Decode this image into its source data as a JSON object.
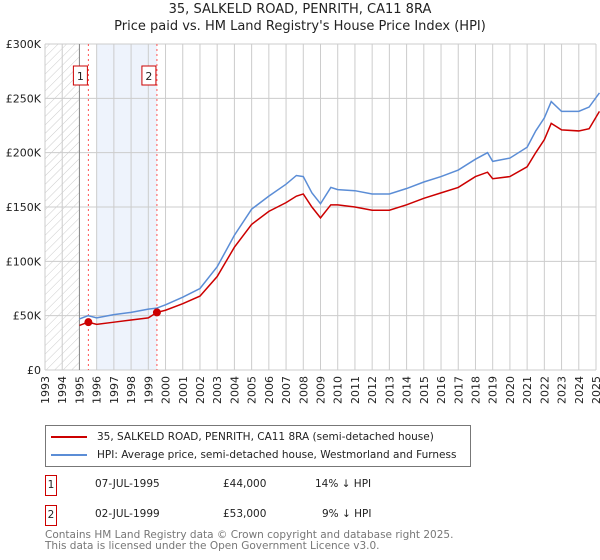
{
  "title": "35, SALKELD ROAD, PENRITH, CA11 8RA",
  "subtitle": "Price paid vs. HM Land Registry's House Price Index (HPI)",
  "chart_data": {
    "type": "line",
    "ylim": [
      0,
      300000
    ],
    "xlim": [
      1993,
      2025
    ],
    "yticks": [
      {
        "v": 0,
        "l": "£0"
      },
      {
        "v": 50000,
        "l": "£50K"
      },
      {
        "v": 100000,
        "l": "£100K"
      },
      {
        "v": 150000,
        "l": "£150K"
      },
      {
        "v": 200000,
        "l": "£200K"
      },
      {
        "v": 250000,
        "l": "£250K"
      },
      {
        "v": 300000,
        "l": "£300K"
      }
    ],
    "xticks": [
      "1993",
      "1994",
      "1995",
      "1996",
      "1997",
      "1998",
      "1999",
      "2000",
      "2001",
      "2002",
      "2003",
      "2004",
      "2005",
      "2006",
      "2007",
      "2008",
      "2009",
      "2010",
      "2011",
      "2012",
      "2013",
      "2014",
      "2015",
      "2016",
      "2017",
      "2018",
      "2019",
      "2020",
      "2021",
      "2022",
      "2023",
      "2024",
      "2025"
    ],
    "series": [
      {
        "name": "35, SALKELD ROAD, PENRITH, CA11 8RA (semi-detached house)",
        "color": "#cc0000",
        "x": [
          1995,
          1995.5,
          1996,
          1997,
          1998,
          1999,
          1999.5,
          2000,
          2001,
          2002,
          2003,
          2004,
          2005,
          2006,
          2007,
          2007.6,
          2008,
          2008.5,
          2009,
          2009.6,
          2010,
          2011,
          2012,
          2013,
          2014,
          2015,
          2016,
          2017,
          2018,
          2018.7,
          2019,
          2020,
          2021,
          2021.5,
          2022,
          2022.4,
          2023,
          2024,
          2024.6,
          2025.2
        ],
        "y": [
          41000,
          44000,
          42000,
          44000,
          46000,
          48000,
          53000,
          55000,
          61000,
          68000,
          86000,
          113000,
          134000,
          146000,
          154000,
          160000,
          162000,
          150000,
          140000,
          152000,
          152000,
          150000,
          147000,
          147000,
          152000,
          158000,
          163000,
          168000,
          178000,
          182000,
          176000,
          178000,
          187000,
          200000,
          212000,
          227000,
          221000,
          220000,
          222000,
          238000
        ]
      },
      {
        "name": "HPI: Average price, semi-detached house, Westmorland and Furness",
        "color": "#5b8dd6",
        "x": [
          1995,
          1995.5,
          1996,
          1997,
          1998,
          1999,
          1999.5,
          2000,
          2001,
          2002,
          2003,
          2004,
          2005,
          2006,
          2007,
          2007.6,
          2008,
          2008.5,
          2009,
          2009.6,
          2010,
          2011,
          2012,
          2013,
          2014,
          2015,
          2016,
          2017,
          2018,
          2018.7,
          2019,
          2020,
          2021,
          2021.5,
          2022,
          2022.4,
          2023,
          2024,
          2024.6,
          2025.2
        ],
        "y": [
          47000,
          50000,
          48000,
          51000,
          53000,
          56000,
          57000,
          60000,
          67000,
          75000,
          95000,
          124000,
          148000,
          160000,
          171000,
          179000,
          178000,
          163000,
          153000,
          168000,
          166000,
          165000,
          162000,
          162000,
          167000,
          173000,
          178000,
          184000,
          194000,
          200000,
          192000,
          195000,
          205000,
          220000,
          232000,
          247000,
          238000,
          238000,
          242000,
          255000
        ]
      }
    ],
    "sales": [
      {
        "id": "1",
        "x": 1995.52,
        "y": 44000
      },
      {
        "id": "2",
        "x": 1999.5,
        "y": 53000
      }
    ]
  },
  "legend": {
    "red": "35, SALKELD ROAD, PENRITH, CA11 8RA (semi-detached house)",
    "blue": "HPI: Average price, semi-detached house, Westmorland and Furness"
  },
  "transactions": [
    {
      "num": "1",
      "date": "07-JUL-1995",
      "price": "£44,000",
      "hpi": "14% ↓ HPI"
    },
    {
      "num": "2",
      "date": "02-JUL-1999",
      "price": "£53,000",
      "hpi": "9% ↓ HPI"
    }
  ],
  "footer": [
    "Contains HM Land Registry data © Crown copyright and database right 2025.",
    "This data is licensed under the Open Government Licence v3.0."
  ]
}
